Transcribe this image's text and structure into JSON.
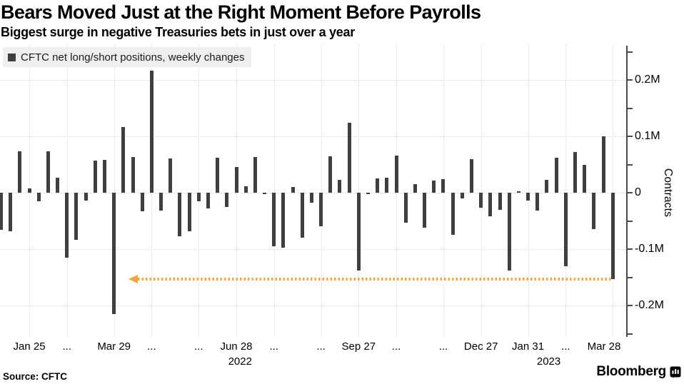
{
  "header": {
    "title": "Bears Moved Just at the Right Moment Before Payrolls",
    "subtitle": "Biggest surge in negative Treasuries bets in just over a year"
  },
  "legend": {
    "label": "CFTC net long/short positions, weekly changes",
    "swatch_color": "#3F3F3F"
  },
  "chart_data": {
    "type": "bar",
    "title": "Bears Moved Just at the Right Moment Before Payrolls",
    "subtitle": "Biggest surge in negative Treasuries bets in just over a year",
    "series_name": "CFTC net long/short positions, weekly changes",
    "unit": "millions of contracts",
    "ylabel": "Contracts",
    "ylim": [
      -0.26,
      0.26
    ],
    "grid": true,
    "legend_position": "top-left",
    "y_ticks": [
      {
        "label": "0.2M",
        "value": 0.2
      },
      {
        "label": "0.1M",
        "value": 0.1
      },
      {
        "label": "0",
        "value": 0
      },
      {
        "label": "-0.1M",
        "value": -0.1
      },
      {
        "label": "-0.2M",
        "value": -0.2
      }
    ],
    "x_ticks": [
      {
        "label": "Jan 25",
        "index": 3
      },
      {
        "label": "...",
        "index": 7
      },
      {
        "label": "Mar 29",
        "index": 12
      },
      {
        "label": "...",
        "index": 16
      },
      {
        "label": "...",
        "index": 21
      },
      {
        "label": "Jun 28",
        "index": 25
      },
      {
        "label": "...",
        "index": 29
      },
      {
        "label": "...",
        "index": 34
      },
      {
        "label": "Sep 27",
        "index": 38
      },
      {
        "label": "...",
        "index": 42
      },
      {
        "label": "...",
        "index": 47
      },
      {
        "label": "Dec 27",
        "index": 51
      },
      {
        "label": "Jan 31",
        "index": 56
      },
      {
        "label": "...",
        "index": 60
      },
      {
        "label": "Mar 28",
        "index": 65
      }
    ],
    "year_labels": [
      {
        "text": "2022",
        "index": 25.4
      },
      {
        "text": "2023",
        "index": 58.2
      }
    ],
    "values": [
      -0.066,
      -0.068,
      0.073,
      0.007,
      -0.015,
      0.073,
      0.027,
      -0.115,
      -0.083,
      -0.014,
      0.057,
      0.058,
      -0.215,
      0.117,
      0.063,
      -0.033,
      0.216,
      -0.032,
      0.061,
      -0.077,
      -0.068,
      -0.015,
      -0.028,
      0.062,
      -0.025,
      0.046,
      0.012,
      0.063,
      -0.003,
      -0.095,
      -0.098,
      0.01,
      -0.08,
      -0.018,
      -0.06,
      0.064,
      0.023,
      0.124,
      -0.138,
      -0.003,
      0.025,
      0.027,
      0.066,
      -0.053,
      0.015,
      -0.062,
      0.021,
      0.024,
      -0.075,
      -0.01,
      0.06,
      -0.027,
      -0.042,
      -0.03,
      -0.138,
      0.003,
      -0.014,
      -0.032,
      0.023,
      0.062,
      -0.131,
      0.072,
      0.05,
      -0.065,
      0.1,
      -0.153
    ],
    "bar_color": "#3F3F3F",
    "annotation": {
      "type": "dotted-horizontal-arrow",
      "level": -0.153,
      "color": "#F5A33B",
      "arrow_direction": "left",
      "start_index": 13.8,
      "end_index": 65,
      "meaning": "last weekly change extended back, biggest negative move in just over a year"
    }
  },
  "footer": {
    "source": "Source: CFTC",
    "brand": "Bloomberg"
  },
  "colors": {
    "bar": "#3F3F3F",
    "annotation_orange": "#F5A33B",
    "gridline": "#D8D8D8",
    "axis": "#4A4A4A",
    "legend_bg": "#EFEFEF",
    "background": "#FFFFFF",
    "text": "#000000"
  }
}
